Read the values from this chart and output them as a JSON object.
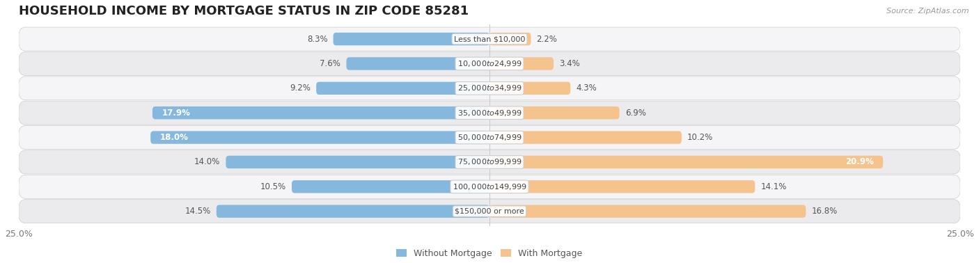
{
  "title": "HOUSEHOLD INCOME BY MORTGAGE STATUS IN ZIP CODE 85281",
  "source": "Source: ZipAtlas.com",
  "categories": [
    "Less than $10,000",
    "$10,000 to $24,999",
    "$25,000 to $34,999",
    "$35,000 to $49,999",
    "$50,000 to $74,999",
    "$75,000 to $99,999",
    "$100,000 to $149,999",
    "$150,000 or more"
  ],
  "without_mortgage": [
    8.3,
    7.6,
    9.2,
    17.9,
    18.0,
    14.0,
    10.5,
    14.5
  ],
  "with_mortgage": [
    2.2,
    3.4,
    4.3,
    6.9,
    10.2,
    20.9,
    14.1,
    16.8
  ],
  "color_without": "#85B8DC",
  "color_with": "#F5C48E",
  "bg_row_light": "#f5f5f7",
  "bg_row_dark": "#ebebed",
  "axis_limit": 25.0,
  "bar_height": 0.52,
  "label_threshold_wo": 15.0,
  "label_threshold_wi": 18.0,
  "legend_entries": [
    "Without Mortgage",
    "With Mortgage"
  ],
  "title_fontsize": 13,
  "label_fontsize": 8.5,
  "cat_fontsize": 8.0
}
